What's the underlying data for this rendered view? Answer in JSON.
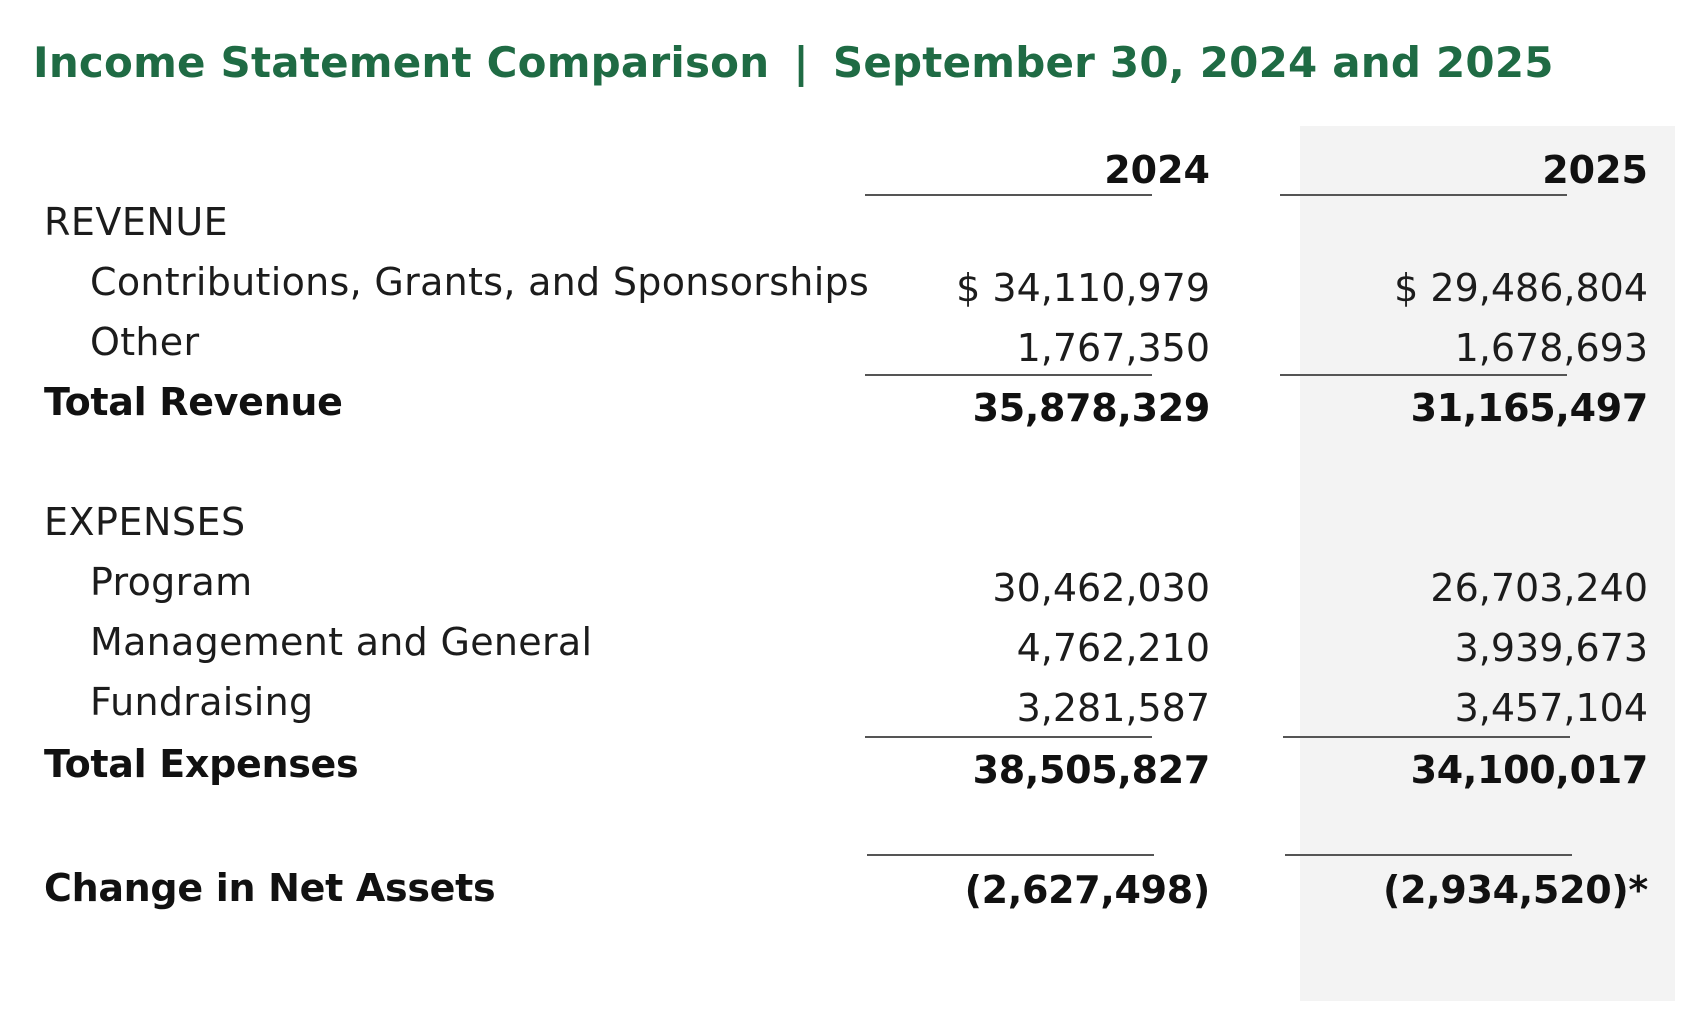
{
  "title": {
    "main": "Income Statement Comparison",
    "separator": "|",
    "date": "September 30, 2024 and 2025"
  },
  "columns": [
    "2024",
    "2025"
  ],
  "revenue": {
    "heading": "REVENUE",
    "rows": [
      {
        "label": "Contributions, Grants, and Sponsorships",
        "v2024": "$ 34,110,979",
        "v2025": "$ 29,486,804"
      },
      {
        "label": "Other",
        "v2024": "1,767,350",
        "v2025": "1,678,693"
      }
    ],
    "total": {
      "label": "Total Revenue",
      "v2024": "35,878,329",
      "v2025": "31,165,497"
    }
  },
  "expenses": {
    "heading": "EXPENSES",
    "rows": [
      {
        "label": "Program",
        "v2024": "30,462,030",
        "v2025": "26,703,240"
      },
      {
        "label": "Management and General",
        "v2024": "4,762,210",
        "v2025": "3,939,673"
      },
      {
        "label": "Fundraising",
        "v2024": "3,281,587",
        "v2025": "3,457,104"
      }
    ],
    "total": {
      "label": "Total Expenses",
      "v2024": "38,505,827",
      "v2025": "34,100,017"
    }
  },
  "net_change": {
    "label": "Change in Net Assets",
    "v2024": "(2,627,498)",
    "v2025": "(2,934,520)*"
  },
  "colors": {
    "title": "#1f6b44",
    "shade": "#f3f3f3",
    "text": "#111111"
  }
}
